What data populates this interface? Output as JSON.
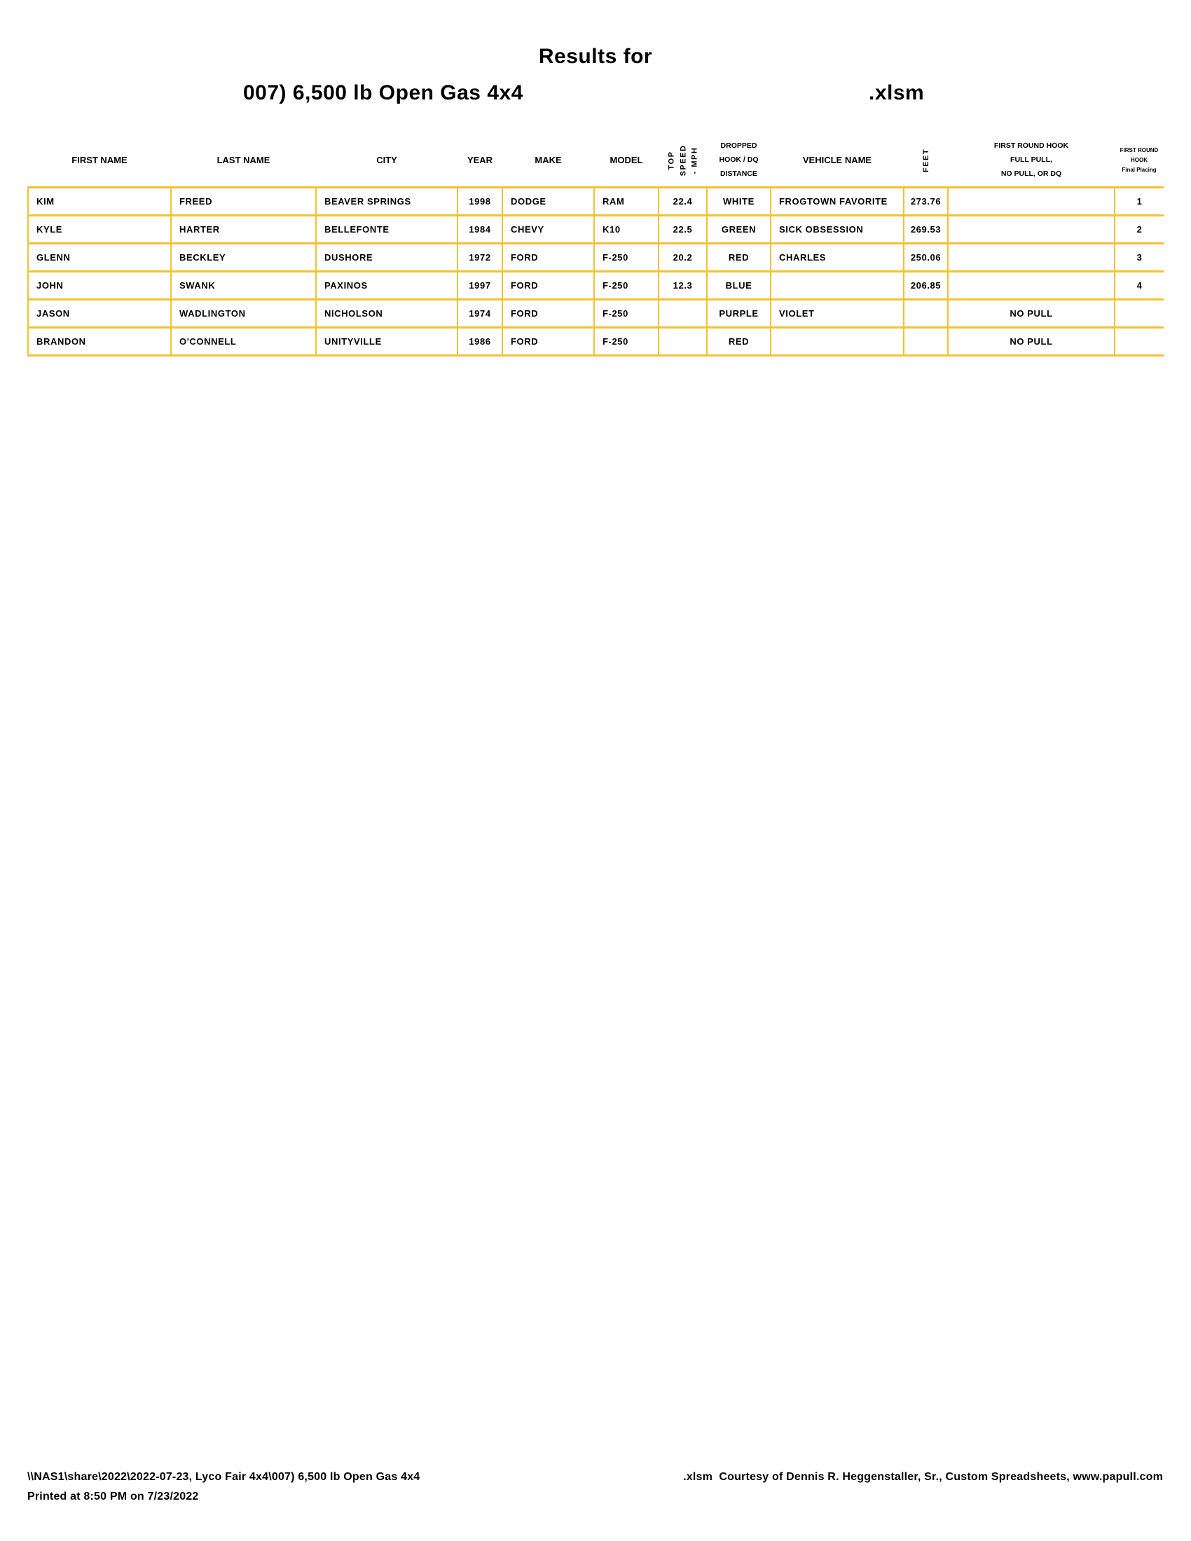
{
  "title": {
    "results_for": "Results for",
    "class_name": "007) 6,500 lb Open Gas 4x4",
    "extension": ".xlsm"
  },
  "table": {
    "columns": [
      {
        "key": "first_name",
        "label": "FIRST NAME"
      },
      {
        "key": "last_name",
        "label": "LAST NAME"
      },
      {
        "key": "city",
        "label": "CITY"
      },
      {
        "key": "year",
        "label": "YEAR"
      },
      {
        "key": "make",
        "label": "MAKE"
      },
      {
        "key": "model",
        "label": "MODEL"
      },
      {
        "key": "top_speed",
        "label": "TOP\nSPEED\n- MPH",
        "vertical": true
      },
      {
        "key": "dropped",
        "label": "DROPPED\nHOOK / DQ\nDISTANCE"
      },
      {
        "key": "vehicle",
        "label": "VEHICLE NAME"
      },
      {
        "key": "feet",
        "label": "FEET",
        "vertical": true
      },
      {
        "key": "hook_result",
        "label": "FIRST ROUND HOOK\nFULL PULL,\nNO PULL, OR DQ"
      },
      {
        "key": "placing",
        "label": "FIRST ROUND\nHOOK",
        "sublabel": "Final Placing"
      }
    ],
    "rows": [
      {
        "first_name": "KIM",
        "last_name": "FREED",
        "city": "BEAVER SPRINGS",
        "year": "1998",
        "make": "DODGE",
        "model": "RAM",
        "top_speed": "22.4",
        "dropped": "WHITE",
        "vehicle": "FROGTOWN FAVORITE",
        "feet": "273.76",
        "hook_result": "",
        "placing": "1"
      },
      {
        "first_name": "KYLE",
        "last_name": "HARTER",
        "city": "BELLEFONTE",
        "year": "1984",
        "make": "CHEVY",
        "model": "K10",
        "top_speed": "22.5",
        "dropped": "GREEN",
        "vehicle": "SICK OBSESSION",
        "feet": "269.53",
        "hook_result": "",
        "placing": "2"
      },
      {
        "first_name": "GLENN",
        "last_name": "BECKLEY",
        "city": "DUSHORE",
        "year": "1972",
        "make": "FORD",
        "model": "F-250",
        "top_speed": "20.2",
        "dropped": "RED",
        "vehicle": "CHARLES",
        "feet": "250.06",
        "hook_result": "",
        "placing": "3"
      },
      {
        "first_name": "JOHN",
        "last_name": "SWANK",
        "city": "PAXINOS",
        "year": "1997",
        "make": "FORD",
        "model": "F-250",
        "top_speed": "12.3",
        "dropped": "BLUE",
        "vehicle": "",
        "feet": "206.85",
        "hook_result": "",
        "placing": "4"
      },
      {
        "first_name": "JASON",
        "last_name": "WADLINGTON",
        "city": "NICHOLSON",
        "year": "1974",
        "make": "FORD",
        "model": "F-250",
        "top_speed": "",
        "dropped": "PURPLE",
        "vehicle": "VIOLET",
        "feet": "",
        "hook_result": "NO PULL",
        "placing": ""
      },
      {
        "first_name": "BRANDON",
        "last_name": "O'CONNELL",
        "city": "UNITYVILLE",
        "year": "1986",
        "make": "FORD",
        "model": "F-250",
        "top_speed": "",
        "dropped": "RED",
        "vehicle": "",
        "feet": "",
        "hook_result": "NO PULL",
        "placing": ""
      }
    ]
  },
  "footer": {
    "path_line": "\\\\NAS1\\share\\2022\\2022-07-23, Lyco Fair 4x4\\007) 6,500 lb Open Gas 4x4",
    "printed_line": "Printed at 8:50 PM on 7/23/2022",
    "credit_line": ".xlsm  Courtesy of Dennis R. Heggenstaller, Sr., Custom Spreadsheets, www.papull.com"
  },
  "colors": {
    "border": "#F2C230",
    "text": "#000000",
    "background": "#FFFFFF"
  }
}
